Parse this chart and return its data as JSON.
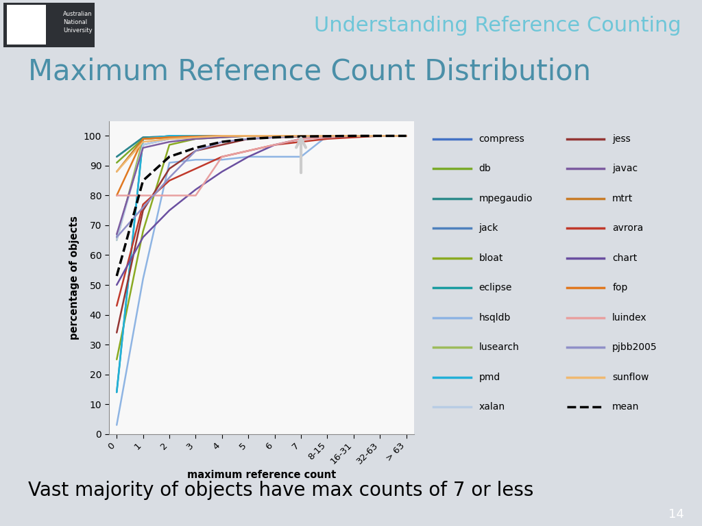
{
  "title": "Maximum Reference Count Distribution",
  "header_title": "Understanding Reference Counting",
  "xlabel": "maximum reference count",
  "ylabel": "percentage of objects",
  "subtitle": "Vast majority of objects have max counts of 7 or less",
  "x_labels": [
    "0",
    "1",
    "2",
    "3",
    "4",
    "5",
    "6",
    "7",
    "8-15",
    "16-31",
    "32-63",
    "> 63"
  ],
  "slide_bg": "#d9dde3",
  "header_bg": "#2d3035",
  "footer_bg": "#8a9aaa",
  "header_color": "#6ec6d8",
  "title_color": "#4a8fa8",
  "series": {
    "compress": {
      "color": "#4472c4",
      "values": [
        93,
        99.5,
        99.8,
        99.9,
        100,
        100,
        100,
        100,
        100,
        100,
        100,
        100
      ]
    },
    "db": {
      "color": "#7aaa2a",
      "values": [
        91,
        99,
        99.5,
        100,
        100,
        100,
        100,
        100,
        100,
        100,
        100,
        100
      ]
    },
    "mpegaudio": {
      "color": "#2e8b8b",
      "values": [
        93,
        99.5,
        99.8,
        100,
        100,
        100,
        100,
        100,
        100,
        100,
        100,
        100
      ]
    },
    "jack": {
      "color": "#4f81bd",
      "values": [
        66,
        97,
        99,
        99.5,
        100,
        100,
        100,
        100,
        100,
        100,
        100,
        100
      ]
    },
    "bloat": {
      "color": "#8aaa22",
      "values": [
        25,
        68,
        97,
        99,
        99.5,
        100,
        100,
        100,
        100,
        100,
        100,
        100
      ]
    },
    "eclipse": {
      "color": "#1a9ca0",
      "values": [
        14,
        99,
        100,
        100,
        100,
        100,
        100,
        100,
        100,
        100,
        100,
        100
      ]
    },
    "hsqldb": {
      "color": "#8eb4e3",
      "values": [
        3,
        52,
        91,
        92,
        92,
        93,
        93,
        93,
        100,
        100,
        100,
        100
      ]
    },
    "lusearch": {
      "color": "#9dbb5c",
      "values": [
        65,
        99,
        99.5,
        99.8,
        100,
        100,
        100,
        100,
        100,
        100,
        100,
        100
      ]
    },
    "pmd": {
      "color": "#23b0d8",
      "values": [
        14,
        99,
        100,
        100,
        100,
        100,
        100,
        100,
        100,
        100,
        100,
        100
      ]
    },
    "xalan": {
      "color": "#b8cce4",
      "values": [
        65,
        97,
        99,
        99.5,
        100,
        100,
        100,
        100,
        100,
        100,
        100,
        100
      ]
    },
    "jess": {
      "color": "#943634",
      "values": [
        34,
        75,
        89,
        95,
        97,
        99,
        99.5,
        99.8,
        99.9,
        100,
        100,
        100
      ]
    },
    "javac": {
      "color": "#7c5ca0",
      "values": [
        67,
        96,
        98,
        99,
        99.5,
        100,
        100,
        100,
        100,
        100,
        100,
        100
      ]
    },
    "mtrt": {
      "color": "#c87c28",
      "values": [
        88,
        99,
        99.5,
        99.8,
        100,
        100,
        100,
        100,
        100,
        100,
        100,
        100
      ]
    },
    "avrora": {
      "color": "#c0392b",
      "values": [
        43,
        77,
        85,
        89,
        93,
        95,
        97,
        98,
        99,
        99.5,
        100,
        100
      ]
    },
    "chart": {
      "color": "#6a4fa0",
      "values": [
        50,
        66,
        75,
        82,
        88,
        93,
        97,
        99,
        99.5,
        100,
        100,
        100
      ]
    },
    "fop": {
      "color": "#e07820",
      "values": [
        80,
        99,
        99.5,
        99.8,
        100,
        100,
        100,
        100,
        100,
        100,
        100,
        100
      ]
    },
    "luindex": {
      "color": "#e8a0a0",
      "values": [
        80,
        80,
        80,
        80,
        93,
        95,
        97,
        99,
        99.5,
        100,
        100,
        100
      ]
    },
    "pjbb2005": {
      "color": "#9090c8",
      "values": [
        66,
        76,
        86,
        95,
        98,
        99,
        99.5,
        100,
        100,
        100,
        100,
        100
      ]
    },
    "sunflow": {
      "color": "#f0b870",
      "values": [
        88,
        98,
        99,
        99.5,
        100,
        100,
        100,
        100,
        100,
        100,
        100,
        100
      ]
    },
    "mean": {
      "color": "#000000",
      "dashed": true,
      "values": [
        53,
        85,
        93,
        96,
        98,
        99,
        99.5,
        99.8,
        99.9,
        100,
        100,
        100
      ]
    }
  },
  "ylim": [
    0,
    105
  ],
  "yticks": [
    0,
    10,
    20,
    30,
    40,
    50,
    60,
    70,
    80,
    90,
    100
  ],
  "legend_left": [
    "compress",
    "db",
    "mpegaudio",
    "jack",
    "bloat",
    "eclipse",
    "hsqldb",
    "lusearch",
    "pmd",
    "xalan"
  ],
  "legend_right": [
    "jess",
    "javac",
    "mtrt",
    "avrora",
    "chart",
    "fop",
    "luindex",
    "pjbb2005",
    "sunflow",
    "mean"
  ]
}
